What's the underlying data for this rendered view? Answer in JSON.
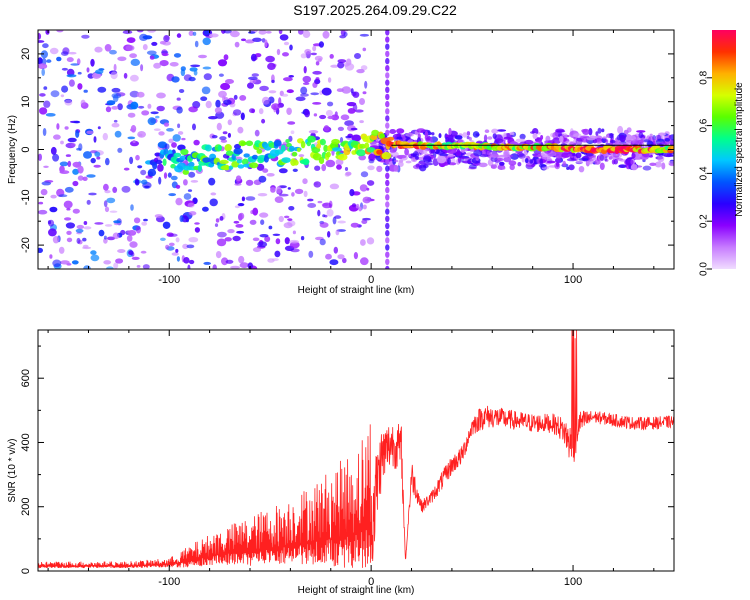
{
  "title": "S197.2025.264.09.29.C22",
  "chart_data": [
    {
      "type": "heatmap",
      "title": "",
      "xlabel": "Height of straight line (km)",
      "ylabel": "Frequency (Hz)",
      "xlim": [
        -165,
        150
      ],
      "ylim": [
        -25,
        25
      ],
      "xticks": [
        -100,
        0,
        100
      ],
      "yticks": [
        -20,
        -10,
        0,
        10,
        20
      ],
      "xtick_labels": [
        "-100",
        "0",
        "100"
      ],
      "ytick_labels": [
        "-20",
        "-10",
        "0",
        "10",
        "20"
      ],
      "colorbar": {
        "label": "Normalized spectral amplitude",
        "range": [
          0,
          1
        ],
        "ticks": [
          0.0,
          0.2,
          0.4,
          0.6,
          0.8
        ],
        "tick_labels": [
          "0.0",
          "0.2",
          "0.4",
          "0.6",
          "0.8"
        ],
        "colors": [
          "#f0dcff",
          "#c77cff",
          "#8a00ff",
          "#2a00ff",
          "#0055ff",
          "#00c8ff",
          "#00ff8c",
          "#5aff00",
          "#d6ff00",
          "#ffb000",
          "#ff3000",
          "#ff0060"
        ]
      },
      "vertical_marker_x": 8,
      "ridge": [
        {
          "x": -110,
          "f": -3.0,
          "a": 0.35
        },
        {
          "x": -95,
          "f": -2.8,
          "a": 0.45
        },
        {
          "x": -85,
          "f": -2.0,
          "a": 0.5
        },
        {
          "x": -75,
          "f": -1.5,
          "a": 0.55
        },
        {
          "x": -60,
          "f": -1.0,
          "a": 0.5
        },
        {
          "x": -45,
          "f": -0.8,
          "a": 0.55
        },
        {
          "x": -30,
          "f": 0.0,
          "a": 0.6
        },
        {
          "x": -15,
          "f": 0.5,
          "a": 0.6
        },
        {
          "x": 0,
          "f": 1.0,
          "a": 0.7
        },
        {
          "x": 15,
          "f": 1.0,
          "a": 0.9
        },
        {
          "x": 30,
          "f": 0.8,
          "a": 0.7
        },
        {
          "x": 50,
          "f": 0.8,
          "a": 0.75
        },
        {
          "x": 70,
          "f": 0.5,
          "a": 0.7
        },
        {
          "x": 90,
          "f": 0.5,
          "a": 0.8
        },
        {
          "x": 100,
          "f": 0.0,
          "a": 0.85
        },
        {
          "x": 120,
          "f": 0.0,
          "a": 0.95
        },
        {
          "x": 135,
          "f": 0.0,
          "a": 0.85
        },
        {
          "x": 150,
          "f": 0.0,
          "a": 0.7
        }
      ]
    },
    {
      "type": "line",
      "title": "",
      "xlabel": "Height of straight line (km)",
      "ylabel": "SNR (10 * v/v)",
      "xlim": [
        -165,
        150
      ],
      "ylim": [
        0,
        750
      ],
      "xticks": [
        -100,
        0,
        100
      ],
      "yticks": [
        0,
        200,
        400,
        600
      ],
      "xtick_labels": [
        "-100",
        "0",
        "100"
      ],
      "ytick_labels": [
        "0",
        "200",
        "400",
        "600"
      ],
      "line_color": "#ff2020",
      "envelope": {
        "x": [
          -165,
          -140,
          -120,
          -100,
          -90,
          -80,
          -70,
          -60,
          -50,
          -40,
          -30,
          -20,
          -10,
          -5,
          0,
          5,
          10,
          15,
          17,
          20,
          25,
          30,
          35,
          40,
          45,
          50,
          55,
          60,
          70,
          80,
          90,
          95,
          100,
          103,
          110,
          120,
          130,
          140,
          150
        ],
        "base": [
          15,
          15,
          15,
          20,
          30,
          45,
          55,
          60,
          70,
          80,
          90,
          100,
          110,
          120,
          150,
          350,
          400,
          380,
          30,
          300,
          200,
          230,
          280,
          330,
          360,
          450,
          480,
          480,
          470,
          460,
          460,
          440,
          380,
          460,
          480,
          470,
          460,
          460,
          465
        ],
        "spread": [
          15,
          15,
          15,
          20,
          50,
          70,
          90,
          110,
          130,
          150,
          180,
          220,
          260,
          300,
          350,
          200,
          150,
          150,
          10,
          100,
          40,
          40,
          60,
          60,
          60,
          60,
          80,
          70,
          60,
          60,
          60,
          80,
          150,
          80,
          40,
          40,
          40,
          40,
          40
        ]
      }
    }
  ]
}
